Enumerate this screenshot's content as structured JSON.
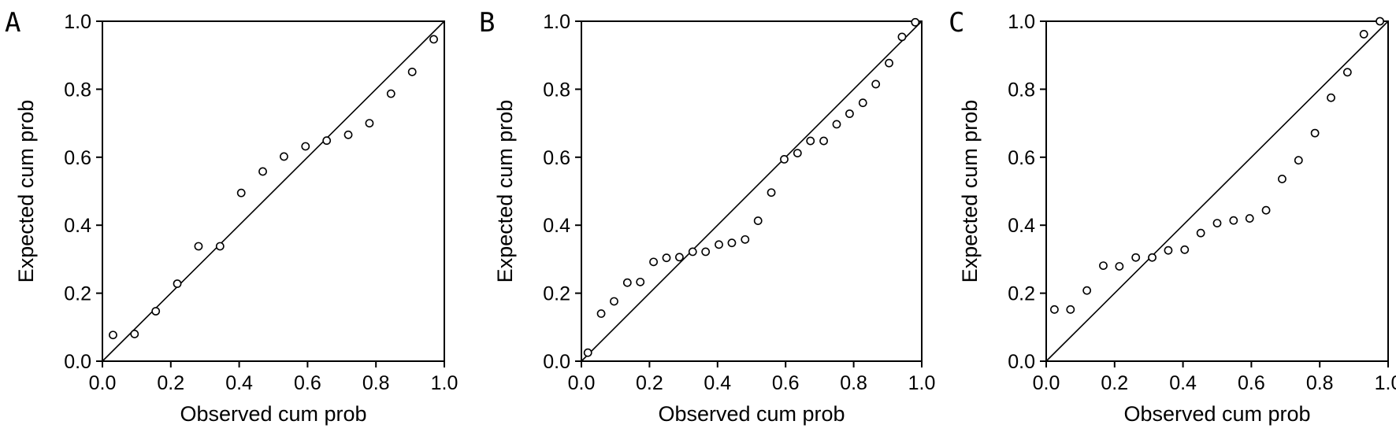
{
  "chart_data": [
    {
      "type": "scatter",
      "panel_label": "A",
      "xlabel": "Observed cum prob",
      "ylabel": "Expected cum prob",
      "xlim": [
        0.0,
        1.0
      ],
      "ylim": [
        0.0,
        1.0
      ],
      "xticks": [
        "0.0",
        "0.2",
        "0.4",
        "0.6",
        "0.8",
        "1.0"
      ],
      "yticks": [
        "0.0",
        "0.2",
        "0.4",
        "0.6",
        "0.8",
        "1.0"
      ],
      "reference_line": [
        [
          0,
          0
        ],
        [
          1,
          1
        ]
      ],
      "grid": false,
      "points": [
        [
          0.031,
          0.077
        ],
        [
          0.094,
          0.08
        ],
        [
          0.156,
          0.147
        ],
        [
          0.219,
          0.228
        ],
        [
          0.281,
          0.338
        ],
        [
          0.344,
          0.338
        ],
        [
          0.406,
          0.495
        ],
        [
          0.469,
          0.558
        ],
        [
          0.531,
          0.602
        ],
        [
          0.594,
          0.632
        ],
        [
          0.656,
          0.649
        ],
        [
          0.719,
          0.666
        ],
        [
          0.781,
          0.7
        ],
        [
          0.844,
          0.787
        ],
        [
          0.906,
          0.851
        ],
        [
          0.969,
          0.947
        ]
      ]
    },
    {
      "type": "scatter",
      "panel_label": "B",
      "xlabel": "Observed cum prob",
      "ylabel": "Expected cum prob",
      "xlim": [
        0.0,
        1.0
      ],
      "ylim": [
        0.0,
        1.0
      ],
      "xticks": [
        "0.0",
        "0.2",
        "0.4",
        "0.6",
        "0.8",
        "1.0"
      ],
      "yticks": [
        "0.0",
        "0.2",
        "0.4",
        "0.6",
        "0.8",
        "1.0"
      ],
      "reference_line": [
        [
          0,
          0
        ],
        [
          1,
          1
        ]
      ],
      "grid": false,
      "points": [
        [
          0.019,
          0.025
        ],
        [
          0.058,
          0.14
        ],
        [
          0.096,
          0.176
        ],
        [
          0.135,
          0.231
        ],
        [
          0.173,
          0.233
        ],
        [
          0.212,
          0.292
        ],
        [
          0.25,
          0.304
        ],
        [
          0.288,
          0.306
        ],
        [
          0.327,
          0.322
        ],
        [
          0.365,
          0.322
        ],
        [
          0.404,
          0.343
        ],
        [
          0.442,
          0.348
        ],
        [
          0.481,
          0.358
        ],
        [
          0.519,
          0.413
        ],
        [
          0.558,
          0.496
        ],
        [
          0.596,
          0.594
        ],
        [
          0.635,
          0.612
        ],
        [
          0.673,
          0.648
        ],
        [
          0.712,
          0.648
        ],
        [
          0.75,
          0.697
        ],
        [
          0.788,
          0.728
        ],
        [
          0.827,
          0.76
        ],
        [
          0.865,
          0.815
        ],
        [
          0.904,
          0.877
        ],
        [
          0.942,
          0.954
        ],
        [
          0.981,
          0.997
        ]
      ]
    },
    {
      "type": "scatter",
      "panel_label": "C",
      "xlabel": "Observed cum prob",
      "ylabel": "Expected cum prob",
      "xlim": [
        0.0,
        1.0
      ],
      "ylim": [
        0.0,
        1.0
      ],
      "xticks": [
        "0.0",
        "0.2",
        "0.4",
        "0.6",
        "0.8",
        "1.0"
      ],
      "yticks": [
        "0.0",
        "0.2",
        "0.4",
        "0.6",
        "0.8",
        "1.0"
      ],
      "reference_line": [
        [
          0,
          0
        ],
        [
          1,
          1
        ]
      ],
      "grid": false,
      "points": [
        [
          0.024,
          0.152
        ],
        [
          0.071,
          0.152
        ],
        [
          0.119,
          0.208
        ],
        [
          0.167,
          0.281
        ],
        [
          0.214,
          0.279
        ],
        [
          0.262,
          0.305
        ],
        [
          0.31,
          0.305
        ],
        [
          0.357,
          0.326
        ],
        [
          0.405,
          0.328
        ],
        [
          0.452,
          0.377
        ],
        [
          0.5,
          0.406
        ],
        [
          0.548,
          0.414
        ],
        [
          0.595,
          0.42
        ],
        [
          0.643,
          0.444
        ],
        [
          0.69,
          0.536
        ],
        [
          0.738,
          0.591
        ],
        [
          0.786,
          0.671
        ],
        [
          0.833,
          0.775
        ],
        [
          0.881,
          0.85
        ],
        [
          0.929,
          0.962
        ],
        [
          0.976,
          1.0
        ]
      ]
    }
  ]
}
